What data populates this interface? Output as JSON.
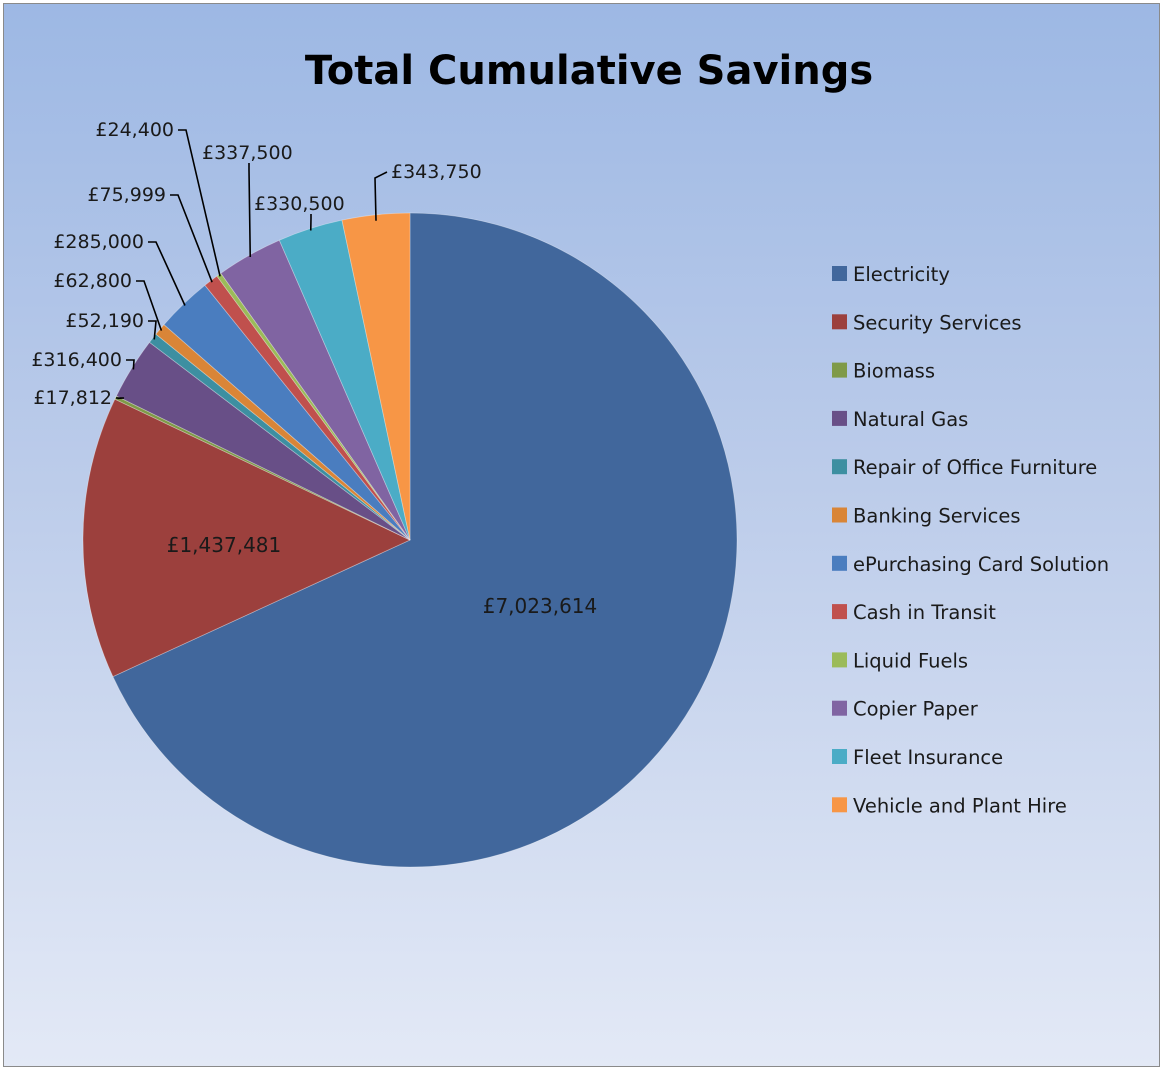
{
  "chart_data": {
    "type": "pie",
    "title": "Total Cumulative Savings",
    "legend_position": "right",
    "start_angle": "12 o'clock, clockwise",
    "slices": [
      {
        "name": "Electricity",
        "value": 7023614,
        "label": "£7,023,614",
        "color": "#41679c"
      },
      {
        "name": "Security Services",
        "value": 1437481,
        "label": "£1,437,481",
        "color": "#9c403d"
      },
      {
        "name": "Biomass",
        "value": 17812,
        "label": "£17,812",
        "color": "#7f9a48"
      },
      {
        "name": "Natural Gas",
        "value": 316400,
        "label": "£316,400",
        "color": "#684f87"
      },
      {
        "name": "Repair of Office Furniture",
        "value": 52190,
        "label": "£52,190",
        "color": "#3d8fa1"
      },
      {
        "name": "Banking Services",
        "value": 62800,
        "label": "£62,800",
        "color": "#d98537"
      },
      {
        "name": "ePurchasing Card Solution",
        "value": 285000,
        "label": "£285,000",
        "color": "#4a7dbf"
      },
      {
        "name": "Cash in Transit",
        "value": 75999,
        "label": "£75,999",
        "color": "#c0504d"
      },
      {
        "name": "Liquid Fuels",
        "value": 24400,
        "label": "£24,400",
        "color": "#9bbb59"
      },
      {
        "name": "Copier Paper",
        "value": 337500,
        "label": "£337,500",
        "color": "#8064a2"
      },
      {
        "name": "Fleet Insurance",
        "value": 330500,
        "label": "£330,500",
        "color": "#4bacc6"
      },
      {
        "name": "Vehicle and Plant Hire",
        "value": 343750,
        "label": "£343,750",
        "color": "#f79646"
      }
    ]
  }
}
